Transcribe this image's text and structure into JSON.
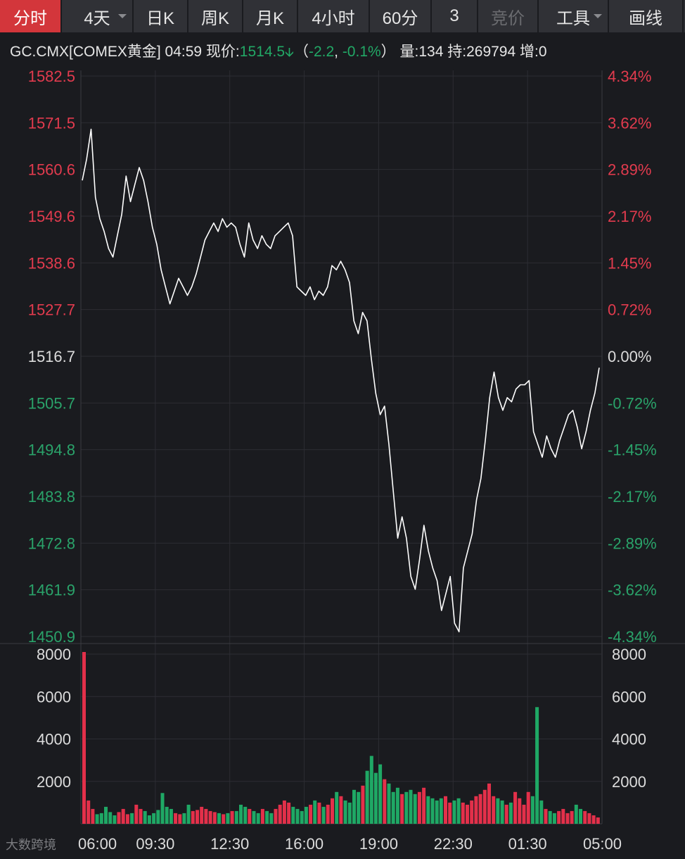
{
  "tabs": [
    {
      "label": "分时",
      "active": true
    },
    {
      "label": "4天",
      "dropdown": true
    },
    {
      "label": "日K"
    },
    {
      "label": "周K"
    },
    {
      "label": "月K"
    },
    {
      "label": "4小时"
    },
    {
      "label": "60分"
    },
    {
      "label": "3"
    },
    {
      "label": "竞价",
      "disabled": true
    },
    {
      "label": "工具",
      "dropdown": true
    },
    {
      "label": "画线"
    }
  ],
  "info": {
    "symbol": "GC.CMX[COMEX黄金]",
    "time": "04:59",
    "price_label": "现价:",
    "price": "1514.5",
    "change": "-2.2",
    "change_pct": "-0.1%",
    "volume_label": "量:",
    "volume": "134",
    "oi_label": "持:",
    "oi": "269794",
    "inc_label": "增:",
    "inc": "0"
  },
  "chart_data": {
    "type": "line",
    "price_axis_left": [
      "1582.5",
      "1571.5",
      "1560.6",
      "1549.6",
      "1538.6",
      "1527.7",
      "1516.7",
      "1505.7",
      "1494.8",
      "1483.8",
      "1472.8",
      "1461.9",
      "1450.9"
    ],
    "price_axis_right": [
      "4.34%",
      "3.62%",
      "2.89%",
      "2.17%",
      "1.45%",
      "0.72%",
      "0.00%",
      "-0.72%",
      "-1.45%",
      "-2.17%",
      "-2.89%",
      "-3.62%",
      "-4.34%"
    ],
    "ylim": [
      1450.9,
      1582.5
    ],
    "prev_close": 1516.7,
    "volume_axis": [
      "8000",
      "6000",
      "4000",
      "2000"
    ],
    "volume_max": 8000,
    "x_ticks": [
      "06:00",
      "09:30",
      "12:30",
      "16:00",
      "19:00",
      "22:30",
      "01:30",
      "05:00"
    ],
    "price_series": [
      1558,
      1563,
      1570,
      1554,
      1549,
      1546,
      1542,
      1540,
      1545,
      1550,
      1559,
      1553,
      1557,
      1561,
      1558,
      1553,
      1547,
      1543,
      1537,
      1533,
      1529,
      1532,
      1535,
      1533,
      1531,
      1533,
      1536,
      1540,
      1544,
      1546,
      1548,
      1546,
      1549,
      1547,
      1548,
      1547,
      1543,
      1540,
      1548,
      1544,
      1542,
      1545,
      1543,
      1542,
      1545,
      1546,
      1547,
      1548,
      1545,
      1533,
      1532,
      1531,
      1533,
      1530,
      1532,
      1531,
      1533,
      1538,
      1537,
      1539,
      1537,
      1534,
      1525,
      1522,
      1527,
      1525,
      1516,
      1508,
      1503,
      1505,
      1496,
      1485,
      1474,
      1479,
      1474,
      1465,
      1462,
      1469,
      1477,
      1471,
      1467,
      1464,
      1457,
      1461,
      1465,
      1454,
      1452,
      1467,
      1471,
      1475,
      1483,
      1488,
      1497,
      1507,
      1513,
      1507,
      1504,
      1507,
      1506,
      1509,
      1510,
      1510,
      1511,
      1499,
      1496,
      1493,
      1498,
      1495,
      1493,
      1497,
      1500,
      1503,
      1504,
      1500,
      1495,
      1499,
      1504,
      1508,
      1514
    ],
    "volume_bars": [
      8100,
      1100,
      700,
      450,
      500,
      800,
      550,
      400,
      550,
      700,
      450,
      500,
      900,
      700,
      600,
      400,
      500,
      650,
      1450,
      800,
      700,
      500,
      450,
      500,
      900,
      600,
      650,
      800,
      700,
      600,
      550,
      500,
      450,
      500,
      600,
      600,
      900,
      800,
      700,
      600,
      500,
      700,
      600,
      500,
      700,
      900,
      1100,
      1000,
      800,
      700,
      600,
      800,
      900,
      1100,
      1000,
      800,
      900,
      1200,
      1500,
      1300,
      1100,
      1000,
      1600,
      1500,
      1800,
      2500,
      3200,
      2400,
      2800,
      2100,
      1900,
      1500,
      1700,
      1400,
      1500,
      1600,
      1400,
      1500,
      1700,
      1300,
      1200,
      1100,
      1200,
      1300,
      1000,
      1100,
      1200,
      1000,
      900,
      1100,
      1300,
      1400,
      1600,
      1900,
      1300,
      1200,
      1100,
      900,
      1000,
      1500,
      1200,
      900,
      1500,
      1300,
      5500,
      1100,
      700,
      600,
      500,
      600,
      700,
      500,
      600,
      900,
      700,
      600,
      500,
      400,
      300
    ],
    "up_color": "#e3304a",
    "down_color": "#1fa865",
    "line_color": "#ffffff"
  },
  "watermark": "大数跨境"
}
